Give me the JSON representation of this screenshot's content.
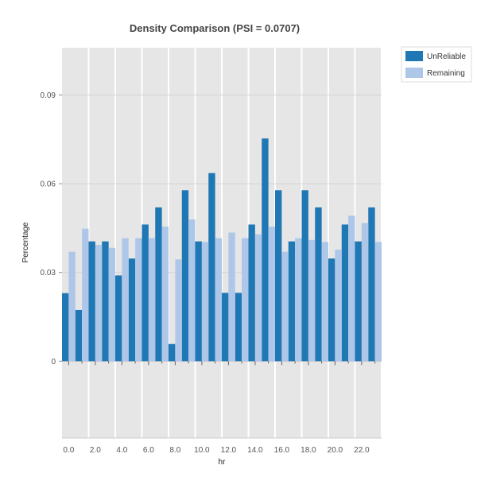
{
  "chart_data": {
    "type": "bar",
    "title": "Density Comparison (PSI = 0.0707)",
    "xlabel": "hr",
    "ylabel": "Percentage",
    "categories": [
      0,
      1,
      2,
      3,
      4,
      5,
      6,
      7,
      8,
      9,
      10,
      11,
      12,
      13,
      14,
      15,
      16,
      17,
      18,
      19,
      20,
      21,
      22,
      23
    ],
    "x_ticks": [
      "0.0",
      "2.0",
      "4.0",
      "6.0",
      "8.0",
      "10.0",
      "12.0",
      "14.0",
      "16.0",
      "18.0",
      "20.0",
      "22.0"
    ],
    "y_ticks": [
      "0",
      "0.03",
      "0.06",
      "0.09"
    ],
    "ylim": [
      -0.026,
      0.106
    ],
    "grid": true,
    "legend_position": "top-right",
    "series": [
      {
        "name": "UnReliable",
        "color": "#1f77b4",
        "values": [
          0.023,
          0.0173,
          0.0405,
          0.0405,
          0.029,
          0.0347,
          0.0462,
          0.052,
          0.0058,
          0.0578,
          0.0405,
          0.0636,
          0.0231,
          0.0231,
          0.0462,
          0.0753,
          0.0578,
          0.0405,
          0.0578,
          0.052,
          0.0347,
          0.0462,
          0.0405,
          0.052
        ]
      },
      {
        "name": "Remaining",
        "color": "#aec7e8",
        "values": [
          0.037,
          0.0448,
          0.0393,
          0.0383,
          0.0416,
          0.0416,
          0.0416,
          0.0455,
          0.0344,
          0.0479,
          0.0403,
          0.0416,
          0.0435,
          0.0416,
          0.0429,
          0.0455,
          0.037,
          0.0416,
          0.041,
          0.0403,
          0.0377,
          0.0492,
          0.0467,
          0.0403
        ]
      }
    ]
  }
}
